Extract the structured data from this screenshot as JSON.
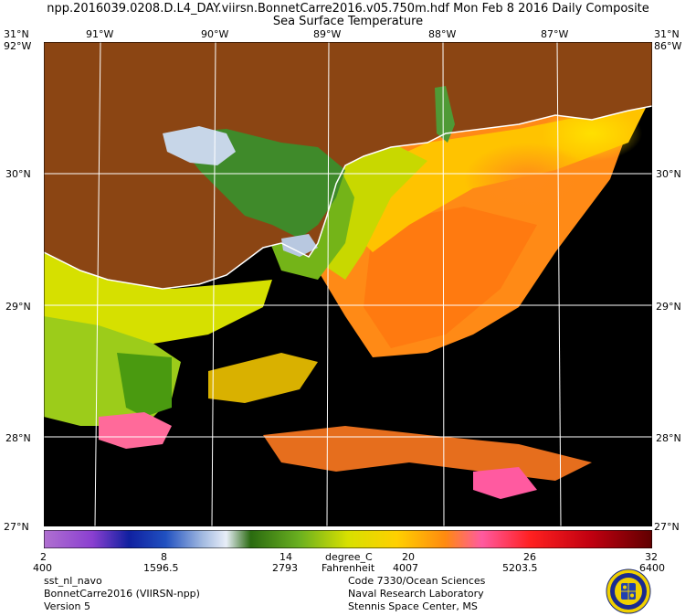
{
  "header": {
    "line1": "npp.2016039.0208.D.L4_DAY.viirsn.BonnetCarre2016.v05.750m.hdf    Mon Feb  8 2016 Daily Composite",
    "line2": "Sea Surface Temperature"
  },
  "map": {
    "lon_labels": [
      "91°W",
      "90°W",
      "89°W",
      "88°W",
      "87°W"
    ],
    "lat_labels": [
      "30°N",
      "29°N",
      "28°N"
    ],
    "corner_top_left": "31°N",
    "corner_top_right": "31°N",
    "corner_bottom_left": "27°N",
    "corner_bottom_right": "27°N",
    "corner_tl_lon": "92°W",
    "corner_tr_lon": "86°W",
    "colors": {
      "land": "#8b4513",
      "nodata": "#000000",
      "grid": "#ffffff"
    }
  },
  "colorbar": {
    "celsius_ticks": [
      "2",
      "8",
      "14",
      "20",
      "26",
      "32"
    ],
    "count_ticks": [
      "400",
      "1596.5",
      "2793",
      "4007",
      "5203.5",
      "6400"
    ],
    "unit_c": "degree_C",
    "unit_f": "Fahrenheit"
  },
  "footer": {
    "left": [
      "sst_nl_navo",
      "BonnetCarre2016 (VIIRSN-npp)",
      "Version 5"
    ],
    "right": [
      "Code 7330/Ocean Sciences",
      "Naval Research Laboratory",
      "Stennis Space Center, MS"
    ]
  },
  "logo": {
    "name": "naval-research-laboratory-seal"
  }
}
